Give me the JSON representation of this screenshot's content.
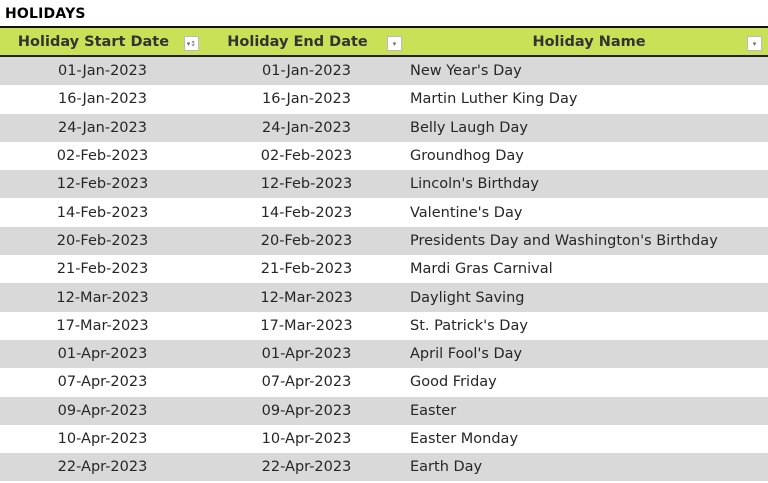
{
  "title": "HOLIDAYS",
  "colors": {
    "header_bg": "#c9e157",
    "stripe": "#d9d9d9"
  },
  "columns": [
    "Holiday Start Date",
    "Holiday End Date",
    "Holiday Name"
  ],
  "rows": [
    [
      "01-Jan-2023",
      "01-Jan-2023",
      "New Year's Day"
    ],
    [
      "16-Jan-2023",
      "16-Jan-2023",
      "Martin Luther King Day"
    ],
    [
      "24-Jan-2023",
      "24-Jan-2023",
      "Belly Laugh Day"
    ],
    [
      "02-Feb-2023",
      "02-Feb-2023",
      "Groundhog Day"
    ],
    [
      "12-Feb-2023",
      "12-Feb-2023",
      "Lincoln's Birthday"
    ],
    [
      "14-Feb-2023",
      "14-Feb-2023",
      "Valentine's Day"
    ],
    [
      "20-Feb-2023",
      "20-Feb-2023",
      "Presidents Day and Washington's Birthday"
    ],
    [
      "21-Feb-2023",
      "21-Feb-2023",
      "Mardi Gras Carnival"
    ],
    [
      "12-Mar-2023",
      "12-Mar-2023",
      "Daylight Saving"
    ],
    [
      "17-Mar-2023",
      "17-Mar-2023",
      "St. Patrick's Day"
    ],
    [
      "01-Apr-2023",
      "01-Apr-2023",
      "April Fool's Day"
    ],
    [
      "07-Apr-2023",
      "07-Apr-2023",
      "Good Friday"
    ],
    [
      "09-Apr-2023",
      "09-Apr-2023",
      "Easter"
    ],
    [
      "10-Apr-2023",
      "10-Apr-2023",
      "Easter Monday"
    ],
    [
      "22-Apr-2023",
      "22-Apr-2023",
      "Earth Day"
    ]
  ]
}
